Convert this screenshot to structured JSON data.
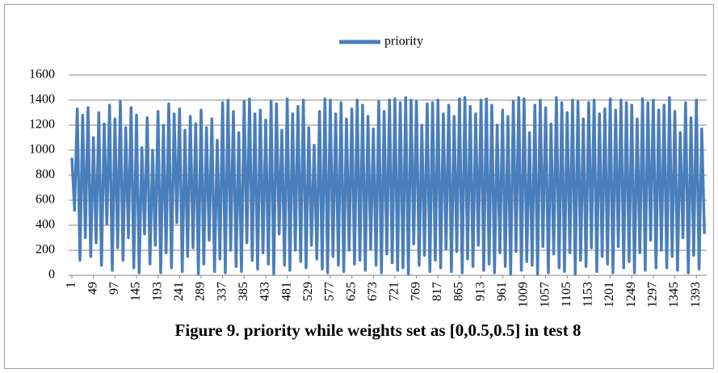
{
  "chart_data": {
    "type": "line",
    "caption": "Figure 9. priority while weights set as [0,0.5,0.5] in test 8",
    "legend": "top",
    "grid": true,
    "ylim": [
      0,
      1600
    ],
    "yticks": [
      0,
      200,
      400,
      600,
      800,
      1000,
      1200,
      1400,
      1600
    ],
    "xlim": [
      1,
      1416
    ],
    "xticks": [
      1,
      49,
      97,
      145,
      193,
      241,
      289,
      337,
      385,
      433,
      481,
      529,
      577,
      625,
      673,
      721,
      769,
      817,
      865,
      913,
      961,
      1009,
      1057,
      1105,
      1153,
      1201,
      1249,
      1297,
      1345,
      1393
    ],
    "x": [
      1,
      7,
      13,
      19,
      25,
      31,
      37,
      43,
      49,
      55,
      61,
      67,
      73,
      79,
      85,
      91,
      97,
      103,
      109,
      115,
      121,
      127,
      133,
      139,
      145,
      151,
      157,
      163,
      169,
      175,
      181,
      187,
      193,
      199,
      205,
      211,
      217,
      223,
      229,
      235,
      241,
      247,
      253,
      259,
      265,
      271,
      277,
      283,
      289,
      295,
      301,
      307,
      313,
      319,
      325,
      331,
      337,
      343,
      349,
      355,
      361,
      367,
      373,
      379,
      385,
      391,
      397,
      403,
      409,
      415,
      421,
      427,
      433,
      439,
      445,
      451,
      457,
      463,
      469,
      475,
      481,
      487,
      493,
      499,
      505,
      511,
      517,
      523,
      529,
      535,
      541,
      547,
      553,
      559,
      565,
      571,
      577,
      583,
      589,
      595,
      601,
      607,
      613,
      619,
      625,
      631,
      637,
      643,
      649,
      655,
      661,
      667,
      673,
      679,
      685,
      691,
      697,
      703,
      709,
      715,
      721,
      727,
      733,
      739,
      745,
      751,
      757,
      763,
      769,
      775,
      781,
      787,
      793,
      799,
      805,
      811,
      817,
      823,
      829,
      835,
      841,
      847,
      853,
      859,
      865,
      871,
      877,
      883,
      889,
      895,
      901,
      907,
      913,
      919,
      925,
      931,
      937,
      943,
      949,
      955,
      961,
      967,
      973,
      979,
      985,
      991,
      997,
      1003,
      1009,
      1015,
      1021,
      1027,
      1033,
      1039,
      1045,
      1051,
      1057,
      1063,
      1069,
      1075,
      1081,
      1087,
      1093,
      1099,
      1105,
      1111,
      1117,
      1123,
      1129,
      1135,
      1141,
      1147,
      1153,
      1159,
      1165,
      1171,
      1177,
      1183,
      1189,
      1195,
      1201,
      1207,
      1213,
      1219,
      1225,
      1231,
      1237,
      1243,
      1249,
      1255,
      1261,
      1267,
      1273,
      1279,
      1285,
      1291,
      1297,
      1303,
      1309,
      1315,
      1321,
      1327,
      1333,
      1339,
      1345,
      1351,
      1357,
      1363,
      1369,
      1375,
      1381,
      1387,
      1393,
      1399,
      1405,
      1411
    ],
    "series": [
      {
        "name": "priority",
        "color": "#4a7ebb",
        "values": [
          940,
          520,
          1330,
          120,
          1280,
          300,
          1340,
          150,
          1100,
          260,
          1300,
          80,
          1210,
          410,
          1360,
          40,
          1250,
          220,
          1390,
          120,
          1180,
          300,
          1340,
          60,
          1280,
          20,
          1020,
          330,
          1260,
          90,
          1000,
          240,
          1310,
          20,
          1200,
          180,
          1370,
          60,
          1290,
          420,
          1330,
          30,
          1160,
          150,
          1270,
          220,
          1210,
          10,
          1320,
          90,
          1180,
          280,
          1250,
          30,
          1080,
          130,
          1380,
          20,
          1400,
          200,
          1310,
          70,
          1140,
          30,
          1390,
          260,
          1410,
          120,
          1290,
          50,
          1320,
          180,
          1240,
          90,
          1390,
          10,
          1370,
          330,
          1160,
          80,
          1410,
          40,
          1290,
          200,
          1350,
          110,
          1400,
          60,
          1180,
          240,
          1040,
          130,
          1310,
          50,
          1410,
          20,
          1400,
          150,
          1290,
          80,
          1380,
          30,
          1250,
          200,
          1330,
          90,
          1400,
          120,
          1360,
          40,
          1270,
          210,
          1170,
          80,
          1390,
          20,
          1310,
          170,
          1400,
          100,
          1410,
          40,
          1380,
          60,
          1420,
          10,
          1400,
          250,
          1390,
          80,
          1200,
          160,
          1370,
          30,
          1380,
          120,
          1400,
          60,
          1290,
          210,
          1360,
          30,
          1270,
          190,
          1410,
          20,
          1420,
          130,
          1350,
          70,
          1290,
          240,
          1400,
          40,
          1410,
          90,
          1360,
          20,
          1200,
          180,
          1320,
          70,
          1270,
          10,
          1390,
          190,
          1420,
          40,
          1410,
          110,
          1140,
          80,
          1360,
          10,
          1400,
          230,
          1340,
          20,
          1210,
          170,
          1420,
          60,
          1380,
          30,
          1300,
          180,
          1400,
          10,
          1390,
          120,
          1250,
          70,
          1380,
          220,
          1400,
          30,
          1290,
          150,
          1330,
          90,
          1410,
          20,
          1320,
          230,
          1400,
          60,
          1380,
          110,
          1360,
          20,
          1250,
          180,
          1410,
          40,
          1380,
          280,
          1400,
          60,
          1320,
          200,
          1360,
          60,
          1420,
          150,
          1310,
          40,
          1140,
          300,
          1380,
          20,
          1260,
          160,
          1400,
          50,
          1170,
          330
        ]
      }
    ]
  }
}
